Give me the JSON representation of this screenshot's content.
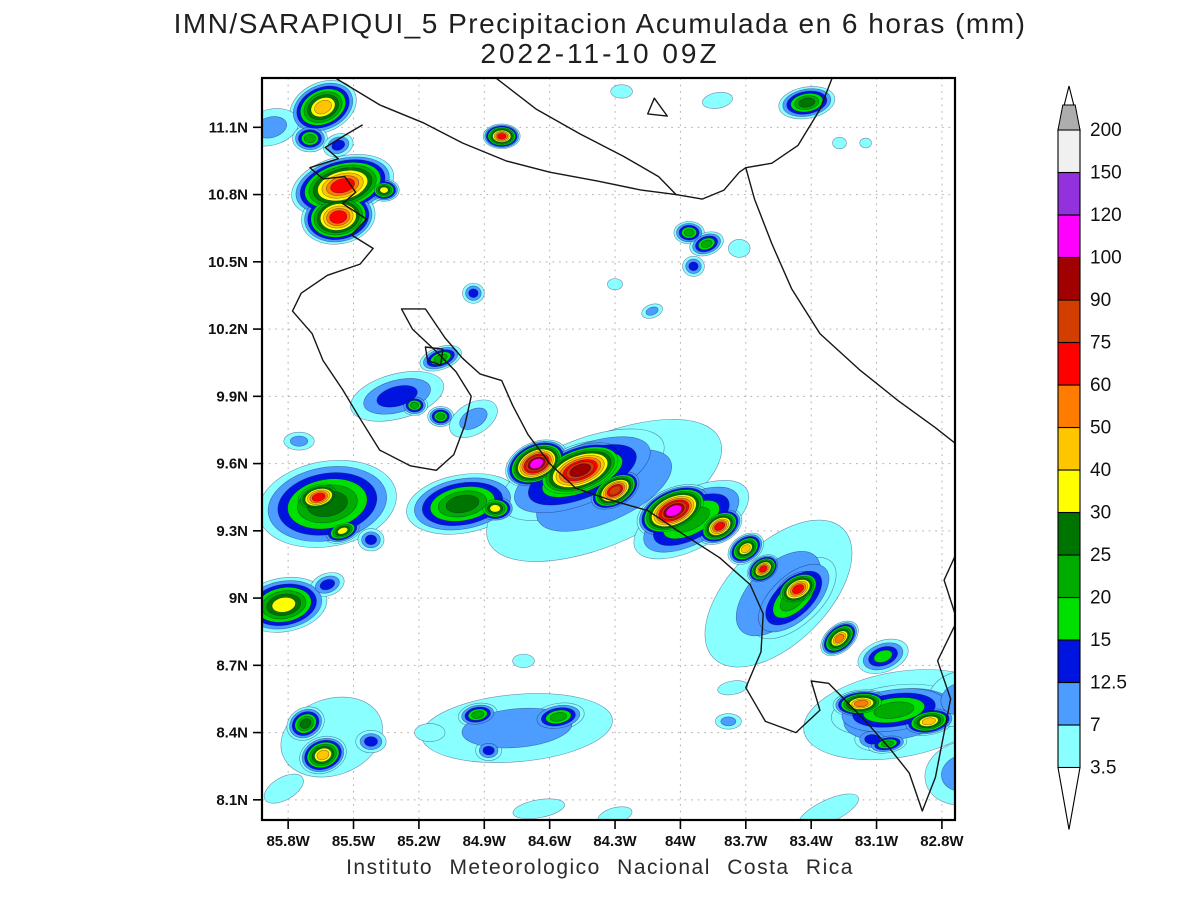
{
  "chart_data": {
    "type": "heatmap",
    "title": "IMN/SARAPIQUI_5 Precipitacion Acumulada en 6 horas (mm)",
    "subtitle": "2022-11-10 09Z",
    "footer": "Instituto Meteorologico Nacional Costa Rica",
    "units": "mm",
    "grid": "dotted",
    "grid_color": "#b3b3b3",
    "lon_range": [
      -85.92,
      -82.74
    ],
    "lat_range": [
      8.01,
      11.32
    ],
    "lon_ticks": [
      [
        -85.8,
        "85.8W"
      ],
      [
        -85.5,
        "85.5W"
      ],
      [
        -85.2,
        "85.2W"
      ],
      [
        -84.9,
        "84.9W"
      ],
      [
        -84.6,
        "84.6W"
      ],
      [
        -84.3,
        "84.3W"
      ],
      [
        -84.0,
        "84W"
      ],
      [
        -83.7,
        "83.7W"
      ],
      [
        -83.4,
        "83.4W"
      ],
      [
        -83.1,
        "83.1W"
      ],
      [
        -82.8,
        "82.8W"
      ]
    ],
    "lat_ticks": [
      [
        11.1,
        "11.1N"
      ],
      [
        10.8,
        "10.8N"
      ],
      [
        10.5,
        "10.5N"
      ],
      [
        10.2,
        "10.2N"
      ],
      [
        9.9,
        "9.9N"
      ],
      [
        9.6,
        "9.6N"
      ],
      [
        9.3,
        "9.3N"
      ],
      [
        9.0,
        "9N"
      ],
      [
        8.7,
        "8.7N"
      ],
      [
        8.4,
        "8.4N"
      ],
      [
        8.1,
        "8.1N"
      ]
    ],
    "colorbar": {
      "levels": [
        3.5,
        7,
        12.5,
        15,
        20,
        25,
        30,
        40,
        50,
        60,
        75,
        90,
        100,
        120,
        150,
        200
      ],
      "labels": [
        "3.5",
        "7",
        "12.5",
        "15",
        "20",
        "25",
        "30",
        "40",
        "50",
        "60",
        "75",
        "90",
        "100",
        "120",
        "150",
        "200"
      ],
      "band_colors": [
        "#8AFFFF",
        "#4D9CFF",
        "#0014E0",
        "#00E000",
        "#00AC00",
        "#007400",
        "#FFFF00",
        "#FFC600",
        "#FF7C00",
        "#FF0000",
        "#D13E00",
        "#A00000",
        "#FF00FF",
        "#9232DC",
        "#F0F0F0"
      ],
      "over_arrow_color": "#ADADAD",
      "under_arrow_color": "#FFFFFF"
    },
    "cell_format": "lon, lat, rx_deg, ry_deg, rotation_deg, peak_level_index(into band_colors)",
    "precip_cells": [
      [
        -85.64,
        11.19,
        0.16,
        0.11,
        -25,
        7
      ],
      [
        -85.88,
        11.1,
        0.13,
        0.08,
        -15,
        1
      ],
      [
        -85.7,
        11.05,
        0.08,
        0.06,
        0,
        4
      ],
      [
        -85.57,
        11.02,
        0.07,
        0.05,
        -20,
        2
      ],
      [
        -85.55,
        10.84,
        0.24,
        0.13,
        -15,
        9
      ],
      [
        -85.57,
        10.7,
        0.17,
        0.12,
        -10,
        9
      ],
      [
        -85.36,
        10.82,
        0.07,
        0.05,
        0,
        6
      ],
      [
        -84.82,
        11.06,
        0.085,
        0.055,
        0,
        9
      ],
      [
        -84.27,
        11.26,
        0.05,
        0.03,
        0,
        0
      ],
      [
        -83.83,
        11.22,
        0.07,
        0.035,
        -10,
        0
      ],
      [
        -83.42,
        11.21,
        0.13,
        0.07,
        -10,
        5
      ],
      [
        -83.27,
        11.03,
        0.032,
        0.026,
        0,
        0
      ],
      [
        -83.15,
        11.03,
        0.027,
        0.022,
        0,
        0
      ],
      [
        -85.1,
        10.07,
        0.1,
        0.05,
        -20,
        4
      ],
      [
        -85.3,
        9.9,
        0.22,
        0.1,
        -15,
        2
      ],
      [
        -85.22,
        9.86,
        0.06,
        0.045,
        0,
        4
      ],
      [
        -85.1,
        9.81,
        0.06,
        0.045,
        0,
        4
      ],
      [
        -84.95,
        9.8,
        0.12,
        0.07,
        -30,
        1
      ],
      [
        -84.95,
        10.36,
        0.05,
        0.045,
        0,
        2
      ],
      [
        -84.3,
        10.4,
        0.035,
        0.025,
        0,
        0
      ],
      [
        -84.13,
        10.28,
        0.05,
        0.03,
        -20,
        1
      ],
      [
        -83.96,
        10.63,
        0.07,
        0.05,
        0,
        4
      ],
      [
        -83.88,
        10.58,
        0.08,
        0.05,
        -20,
        4
      ],
      [
        -83.94,
        10.48,
        0.05,
        0.045,
        0,
        2
      ],
      [
        -83.73,
        10.56,
        0.05,
        0.04,
        0,
        0
      ],
      [
        -85.62,
        9.42,
        0.32,
        0.19,
        -10,
        5
      ],
      [
        -85.66,
        9.45,
        0.13,
        0.075,
        -15,
        9
      ],
      [
        -85.55,
        9.3,
        0.09,
        0.05,
        -20,
        6
      ],
      [
        -85.42,
        9.26,
        0.06,
        0.05,
        0,
        2
      ],
      [
        -85.75,
        9.7,
        0.07,
        0.04,
        0,
        1
      ],
      [
        -85.0,
        9.42,
        0.26,
        0.13,
        -10,
        5
      ],
      [
        -84.85,
        9.4,
        0.09,
        0.06,
        0,
        6
      ],
      [
        -84.35,
        9.48,
        0.58,
        0.24,
        -24,
        1
      ],
      [
        -83.55,
        9.02,
        0.42,
        0.22,
        -45,
        1
      ],
      [
        -84.45,
        9.55,
        0.4,
        0.155,
        -22,
        4
      ],
      [
        -83.95,
        9.35,
        0.29,
        0.13,
        -28,
        4
      ],
      [
        -83.48,
        9.0,
        0.24,
        0.12,
        -43,
        4
      ],
      [
        -84.66,
        9.6,
        0.15,
        0.095,
        -25,
        12
      ],
      [
        -84.46,
        9.57,
        0.23,
        0.115,
        -20,
        11
      ],
      [
        -84.3,
        9.48,
        0.13,
        0.075,
        -30,
        10
      ],
      [
        -84.03,
        9.39,
        0.18,
        0.1,
        -25,
        12
      ],
      [
        -83.82,
        9.32,
        0.11,
        0.07,
        -30,
        9
      ],
      [
        -83.7,
        9.22,
        0.09,
        0.06,
        -35,
        7
      ],
      [
        -83.62,
        9.13,
        0.08,
        0.055,
        -35,
        9
      ],
      [
        -83.46,
        9.04,
        0.12,
        0.075,
        -30,
        9
      ],
      [
        -83.27,
        8.82,
        0.1,
        0.06,
        -40,
        8
      ],
      [
        -83.07,
        8.74,
        0.12,
        0.07,
        -20,
        3
      ],
      [
        -83.0,
        8.48,
        0.44,
        0.19,
        -10,
        1
      ],
      [
        -83.02,
        8.5,
        0.29,
        0.11,
        -8,
        4
      ],
      [
        -83.17,
        8.53,
        0.13,
        0.06,
        -5,
        8
      ],
      [
        -82.86,
        8.45,
        0.12,
        0.06,
        -10,
        7
      ],
      [
        -83.12,
        8.37,
        0.08,
        0.05,
        0,
        2
      ],
      [
        -83.05,
        8.35,
        0.09,
        0.04,
        -10,
        4
      ],
      [
        -83.76,
        8.6,
        0.07,
        0.03,
        -10,
        0
      ],
      [
        -83.78,
        8.45,
        0.06,
        0.035,
        0,
        1
      ],
      [
        -85.82,
        8.97,
        0.2,
        0.12,
        -10,
        6
      ],
      [
        -85.62,
        9.06,
        0.08,
        0.05,
        -20,
        2
      ],
      [
        -85.6,
        8.38,
        0.24,
        0.17,
        -20,
        0
      ],
      [
        -85.72,
        8.44,
        0.09,
        0.07,
        -30,
        5
      ],
      [
        -85.64,
        8.3,
        0.11,
        0.08,
        -20,
        7
      ],
      [
        -85.42,
        8.36,
        0.07,
        0.05,
        0,
        2
      ],
      [
        -85.82,
        8.15,
        0.1,
        0.05,
        -30,
        0
      ],
      [
        -84.75,
        8.42,
        0.44,
        0.15,
        -5,
        1
      ],
      [
        -84.93,
        8.48,
        0.09,
        0.05,
        -10,
        4
      ],
      [
        -84.56,
        8.47,
        0.12,
        0.06,
        -10,
        4
      ],
      [
        -84.88,
        8.32,
        0.06,
        0.045,
        0,
        2
      ],
      [
        -85.15,
        8.4,
        0.07,
        0.04,
        0,
        0
      ],
      [
        -84.72,
        8.72,
        0.05,
        0.03,
        0,
        0
      ],
      [
        -82.72,
        8.55,
        0.15,
        0.12,
        -20,
        1
      ],
      [
        -82.7,
        8.22,
        0.18,
        0.14,
        -15,
        1
      ],
      [
        -83.32,
        8.05,
        0.15,
        0.05,
        -25,
        0
      ],
      [
        -84.65,
        8.06,
        0.12,
        0.04,
        -10,
        0
      ],
      [
        -84.3,
        8.03,
        0.08,
        0.035,
        -15,
        0
      ]
    ],
    "basemap": {
      "stroke_color": "#161616",
      "closed_paths": [
        "chira_island",
        "lake_island"
      ],
      "paths": {
        "nicaragua_coast_line": [
          [
            -85.6,
            11.33
          ],
          [
            -85.38,
            11.2
          ],
          [
            -85.18,
            11.12
          ],
          [
            -85.0,
            11.03
          ],
          [
            -84.8,
            10.95
          ],
          [
            -84.6,
            10.9
          ],
          [
            -84.38,
            10.86
          ],
          [
            -84.18,
            10.82
          ],
          [
            -84.02,
            10.8
          ]
        ],
        "lake_nicaragua_shore": [
          [
            -84.86,
            11.33
          ],
          [
            -84.66,
            11.18
          ],
          [
            -84.46,
            11.07
          ],
          [
            -84.26,
            10.97
          ],
          [
            -84.1,
            10.88
          ],
          [
            -84.02,
            10.8
          ]
        ],
        "san_juan_river": [
          [
            -84.02,
            10.8
          ],
          [
            -83.9,
            10.78
          ],
          [
            -83.8,
            10.82
          ],
          [
            -83.73,
            10.9
          ],
          [
            -83.7,
            10.92
          ]
        ],
        "caribbean_coast": [
          [
            -83.3,
            11.33
          ],
          [
            -83.36,
            11.18
          ],
          [
            -83.46,
            11.02
          ],
          [
            -83.58,
            10.94
          ],
          [
            -83.7,
            10.92
          ],
          [
            -83.66,
            10.78
          ],
          [
            -83.58,
            10.58
          ],
          [
            -83.49,
            10.38
          ],
          [
            -83.36,
            10.18
          ],
          [
            -83.18,
            10.02
          ],
          [
            -83.0,
            9.88
          ],
          [
            -82.83,
            9.76
          ],
          [
            -82.66,
            9.63
          ]
        ],
        "pacific_coast": [
          [
            -85.46,
            11.11
          ],
          [
            -85.53,
            11.07
          ],
          [
            -85.63,
            11.01
          ],
          [
            -85.57,
            10.96
          ],
          [
            -85.7,
            10.92
          ],
          [
            -85.64,
            10.87
          ],
          [
            -85.54,
            10.88
          ],
          [
            -85.49,
            10.81
          ],
          [
            -85.55,
            10.76
          ],
          [
            -85.44,
            10.69
          ],
          [
            -85.51,
            10.62
          ],
          [
            -85.41,
            10.56
          ],
          [
            -85.47,
            10.49
          ],
          [
            -85.62,
            10.44
          ],
          [
            -85.74,
            10.36
          ],
          [
            -85.78,
            10.28
          ],
          [
            -85.69,
            10.18
          ],
          [
            -85.64,
            10.06
          ],
          [
            -85.55,
            9.93
          ],
          [
            -85.47,
            9.8
          ],
          [
            -85.38,
            9.66
          ],
          [
            -85.24,
            9.59
          ],
          [
            -85.12,
            9.57
          ],
          [
            -85.04,
            9.64
          ],
          [
            -84.99,
            9.77
          ],
          [
            -84.96,
            9.9
          ],
          [
            -85.03,
            10.01
          ],
          [
            -85.12,
            10.1
          ],
          [
            -85.23,
            10.2
          ],
          [
            -85.28,
            10.29
          ],
          [
            -85.17,
            10.29
          ],
          [
            -85.08,
            10.16
          ],
          [
            -85.0,
            10.07
          ],
          [
            -84.92,
            10.0
          ],
          [
            -84.82,
            9.97
          ],
          [
            -84.77,
            9.86
          ],
          [
            -84.7,
            9.73
          ],
          [
            -84.6,
            9.6
          ],
          [
            -84.48,
            9.49
          ],
          [
            -84.33,
            9.44
          ],
          [
            -84.15,
            9.39
          ],
          [
            -83.98,
            9.28
          ],
          [
            -83.82,
            9.18
          ],
          [
            -83.68,
            9.06
          ],
          [
            -83.62,
            8.93
          ],
          [
            -83.63,
            8.76
          ],
          [
            -83.7,
            8.6
          ],
          [
            -83.61,
            8.45
          ],
          [
            -83.47,
            8.4
          ],
          [
            -83.36,
            8.5
          ],
          [
            -83.4,
            8.63
          ],
          [
            -83.32,
            8.62
          ],
          [
            -83.25,
            8.55
          ],
          [
            -83.15,
            8.45
          ],
          [
            -83.04,
            8.33
          ],
          [
            -82.95,
            8.22
          ],
          [
            -82.89,
            8.05
          ],
          [
            -82.83,
            8.2
          ],
          [
            -82.79,
            8.4
          ],
          [
            -82.76,
            8.55
          ]
        ],
        "panama_border": [
          [
            -82.76,
            8.55
          ],
          [
            -82.82,
            8.72
          ],
          [
            -82.73,
            8.9
          ],
          [
            -82.79,
            9.08
          ],
          [
            -82.71,
            9.25
          ],
          [
            -82.74,
            9.4
          ],
          [
            -82.66,
            9.52
          ]
        ],
        "chira_island": [
          [
            -85.17,
            10.12
          ],
          [
            -85.09,
            10.11
          ],
          [
            -85.1,
            10.04
          ],
          [
            -85.16,
            10.06
          ]
        ],
        "lake_island": [
          [
            -84.12,
            11.23
          ],
          [
            -84.06,
            11.15
          ],
          [
            -84.15,
            11.16
          ]
        ]
      }
    }
  }
}
